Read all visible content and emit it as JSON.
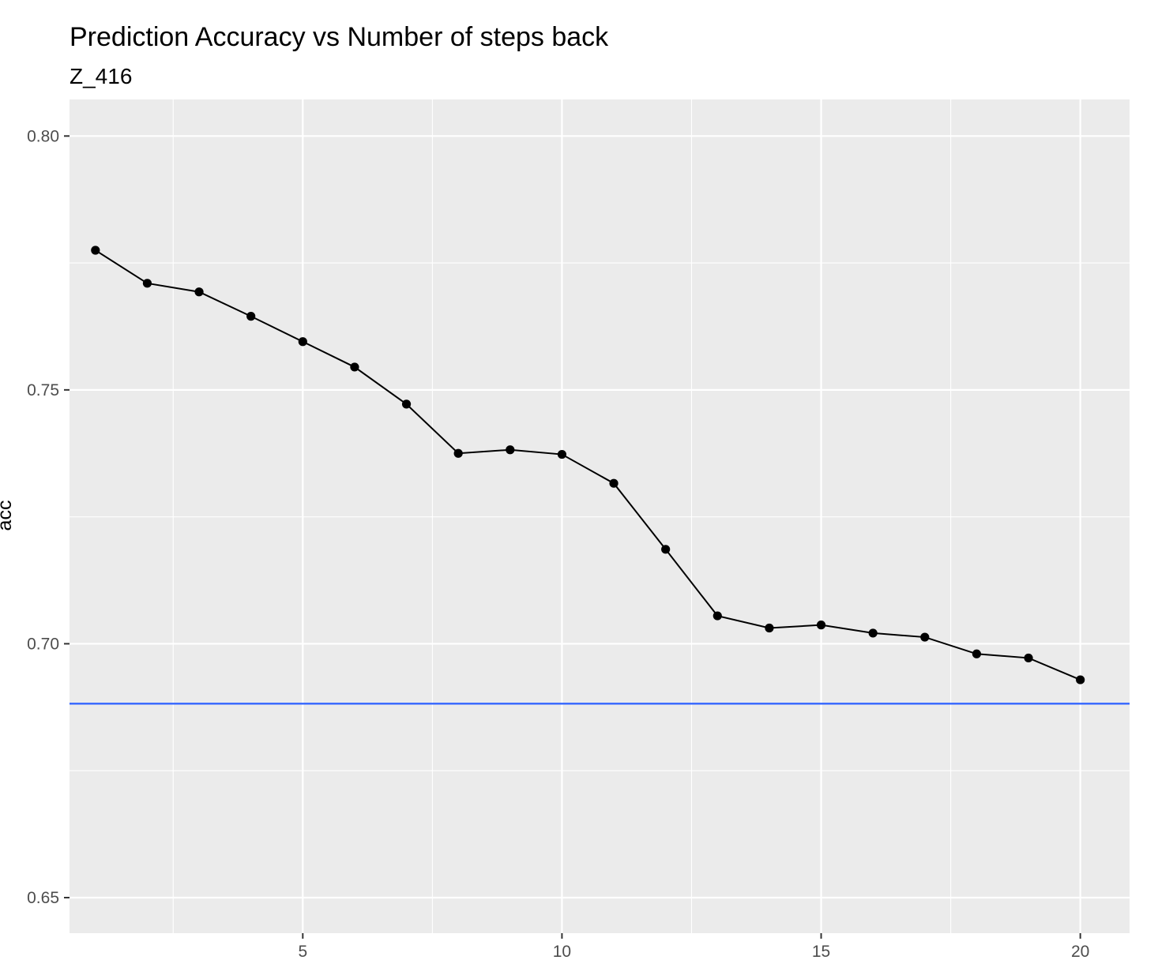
{
  "chart_data": {
    "type": "line",
    "title": "Prediction Accuracy vs Number of steps back",
    "subtitle": "Z_416",
    "xlabel": "",
    "ylabel": "acc",
    "xlim": [
      0.5,
      20.95
    ],
    "ylim": [
      0.643,
      0.8072
    ],
    "x_ticks": [
      5,
      10,
      15,
      20
    ],
    "x_tick_labels": [
      "5",
      "10",
      "15",
      "20"
    ],
    "y_ticks": [
      0.65,
      0.7,
      0.75,
      0.8
    ],
    "y_tick_labels": [
      "0.65",
      "0.70",
      "0.75",
      "0.80"
    ],
    "grid": true,
    "series": [
      {
        "x": [
          1,
          2,
          3,
          4,
          5,
          6,
          7,
          8,
          9,
          10,
          11,
          12,
          13,
          14,
          15,
          16,
          17,
          18,
          19,
          20
        ],
        "values": [
          0.7775,
          0.771,
          0.7693,
          0.7645,
          0.7595,
          0.7545,
          0.7472,
          0.7375,
          0.7382,
          0.7373,
          0.7316,
          0.7186,
          0.7055,
          0.7031,
          0.7037,
          0.7021,
          0.7013,
          0.698,
          0.6972,
          0.6929
        ],
        "color": "#000000"
      }
    ],
    "hlines": [
      {
        "y": 0.6882,
        "color": "#3366FF"
      }
    ],
    "panel_color": "#EBEBEB",
    "grid_color": "#FFFFFF"
  }
}
